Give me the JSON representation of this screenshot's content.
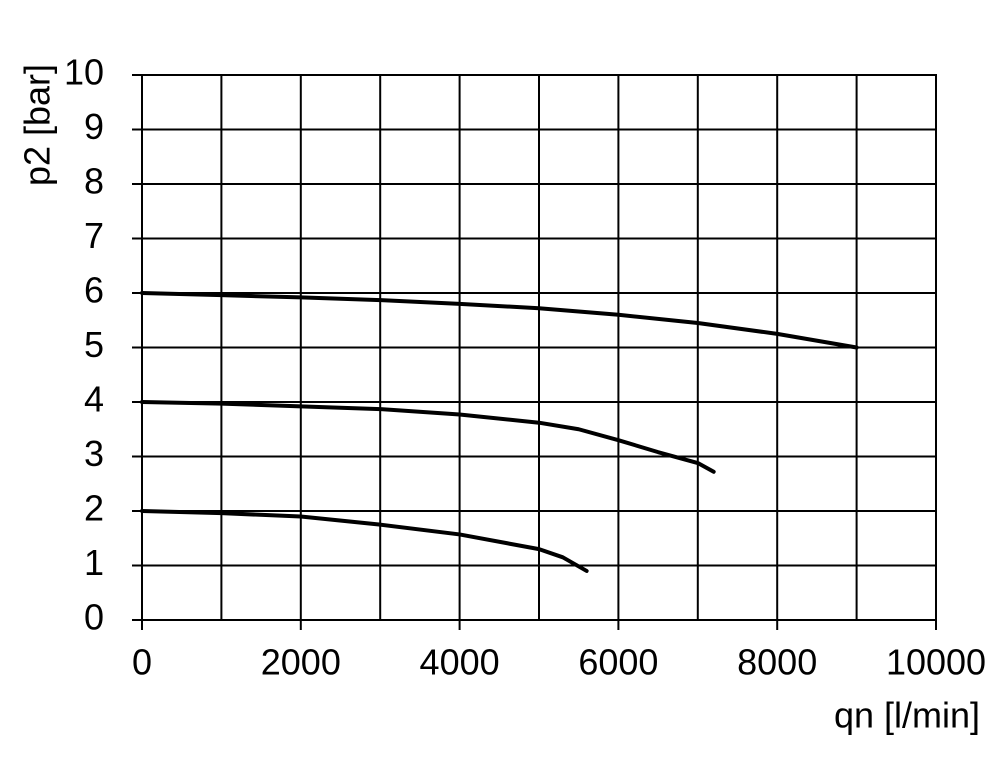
{
  "chart_data": {
    "type": "line",
    "xlabel": "qn [l/min]",
    "ylabel": "p2 [bar]",
    "xlim": [
      0,
      10000
    ],
    "ylim": [
      0,
      10
    ],
    "xticks": [
      0,
      2000,
      4000,
      6000,
      8000,
      10000
    ],
    "xminorticks": [
      1000,
      3000,
      5000,
      7000,
      9000
    ],
    "yticks": [
      0,
      1,
      2,
      3,
      4,
      5,
      6,
      7,
      8,
      9,
      10
    ],
    "grid": true,
    "series": [
      {
        "color": "#000000",
        "x": [
          0,
          1000,
          2000,
          3000,
          4000,
          5000,
          6000,
          7000,
          8000,
          9000
        ],
        "values": [
          6.0,
          5.96,
          5.92,
          5.87,
          5.8,
          5.72,
          5.6,
          5.45,
          5.25,
          5.0
        ]
      },
      {
        "color": "#000000",
        "x": [
          0,
          1000,
          2000,
          3000,
          4000,
          5000,
          5500,
          6000,
          6500,
          7000,
          7200
        ],
        "values": [
          4.0,
          3.97,
          3.92,
          3.87,
          3.77,
          3.62,
          3.5,
          3.3,
          3.08,
          2.88,
          2.72
        ]
      },
      {
        "color": "#000000",
        "x": [
          0,
          1000,
          2000,
          3000,
          4000,
          5000,
          5300,
          5600
        ],
        "values": [
          2.0,
          1.96,
          1.9,
          1.75,
          1.57,
          1.3,
          1.15,
          0.9
        ]
      }
    ]
  }
}
